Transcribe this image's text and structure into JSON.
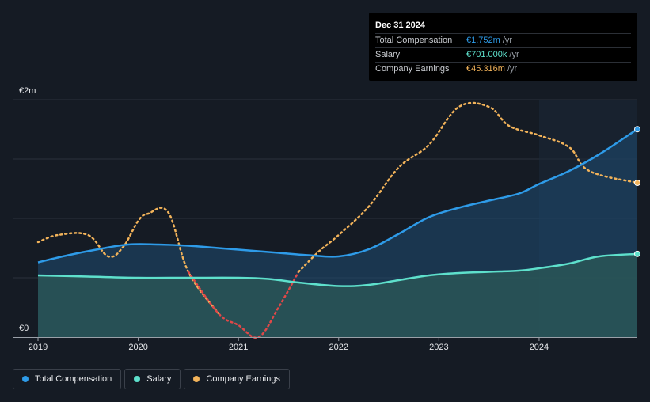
{
  "chart_data": {
    "type": "area",
    "y_labels": [
      "€2m",
      "€0"
    ],
    "x_ticks": [
      "2019",
      "2020",
      "2021",
      "2022",
      "2023",
      "2024"
    ],
    "ylim": [
      0,
      2
    ],
    "xlim": [
      2019.0,
      2024.98
    ],
    "forecast_start": 2024.0,
    "series": [
      {
        "name": "Total Compensation",
        "color": "#2e9be8",
        "x": [
          2019.0,
          2019.3,
          2019.6,
          2019.9,
          2020.2,
          2020.5,
          2020.8,
          2021.1,
          2021.4,
          2021.7,
          2022.0,
          2022.3,
          2022.6,
          2022.9,
          2023.2,
          2023.5,
          2023.8,
          2024.0,
          2024.3,
          2024.6,
          2024.98
        ],
        "y": [
          0.63,
          0.69,
          0.74,
          0.78,
          0.78,
          0.77,
          0.75,
          0.73,
          0.71,
          0.69,
          0.68,
          0.74,
          0.87,
          1.01,
          1.09,
          1.15,
          1.21,
          1.29,
          1.4,
          1.54,
          1.752
        ]
      },
      {
        "name": "Salary",
        "color": "#5ee0cc",
        "x": [
          2019.0,
          2019.5,
          2020.0,
          2020.5,
          2021.0,
          2021.3,
          2021.6,
          2022.0,
          2022.3,
          2022.6,
          2022.9,
          2023.2,
          2023.5,
          2023.8,
          2024.0,
          2024.3,
          2024.6,
          2024.98
        ],
        "y": [
          0.52,
          0.51,
          0.5,
          0.5,
          0.5,
          0.49,
          0.46,
          0.43,
          0.44,
          0.48,
          0.52,
          0.54,
          0.55,
          0.56,
          0.58,
          0.62,
          0.68,
          0.701
        ]
      },
      {
        "name": "Company Earnings",
        "color": "#f2b35a",
        "neg_color": "#e04848",
        "dashed": true,
        "x": [
          2019.0,
          2019.2,
          2019.5,
          2019.7,
          2019.85,
          2020.0,
          2020.1,
          2020.3,
          2020.5,
          2020.8,
          2021.0,
          2021.2,
          2021.4,
          2021.6,
          2021.8,
          2022.0,
          2022.3,
          2022.6,
          2022.9,
          2023.2,
          2023.5,
          2023.7,
          2024.0,
          2024.3,
          2024.5,
          2024.98
        ],
        "y": [
          0.8,
          0.86,
          0.86,
          0.68,
          0.76,
          0.98,
          1.04,
          1.05,
          0.55,
          0.2,
          0.1,
          0.0,
          0.25,
          0.55,
          0.72,
          0.86,
          1.1,
          1.43,
          1.62,
          1.94,
          1.94,
          1.78,
          1.7,
          1.6,
          1.4,
          1.3
        ]
      }
    ]
  },
  "tooltip": {
    "date": "Dec 31 2024",
    "rows": [
      {
        "label": "Total Compensation",
        "value": "€1.752m",
        "unit": "/yr",
        "color": "#2e9be8"
      },
      {
        "label": "Salary",
        "value": "€701.000k",
        "unit": "/yr",
        "color": "#5ee0cc"
      },
      {
        "label": "Company Earnings",
        "value": "€45.316m",
        "unit": "/yr",
        "color": "#f2b35a"
      }
    ]
  },
  "legend": [
    {
      "label": "Total Compensation",
      "color": "#2e9be8"
    },
    {
      "label": "Salary",
      "color": "#5ee0cc"
    },
    {
      "label": "Company Earnings",
      "color": "#f2b35a"
    }
  ]
}
